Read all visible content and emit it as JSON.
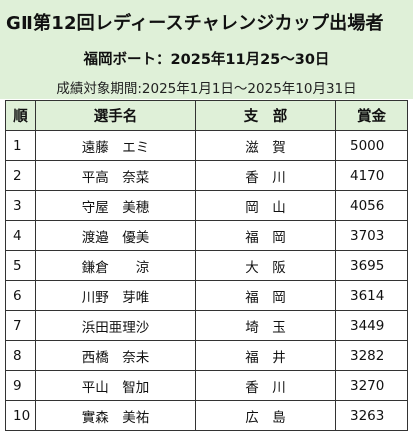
{
  "header": {
    "title": "GⅡ第12回レディースチャレンジカップ出場者",
    "subtitle": "福岡ボート：2025年11月25〜30日",
    "period": "成績対象期間:2025年1月1日〜2025年10月31日"
  },
  "table": {
    "columns": {
      "rank": "順",
      "name": "選手名",
      "branch": "支　部",
      "prize": "賞金"
    },
    "rows": [
      {
        "rank": "1",
        "name": "遠藤　エミ",
        "branch": "滋　賀",
        "prize": "5000"
      },
      {
        "rank": "2",
        "name": "平高　奈菜",
        "branch": "香　川",
        "prize": "4170"
      },
      {
        "rank": "3",
        "name": "守屋　美穂",
        "branch": "岡　山",
        "prize": "4056"
      },
      {
        "rank": "4",
        "name": "渡邉　優美",
        "branch": "福　岡",
        "prize": "3703"
      },
      {
        "rank": "5",
        "name": "鎌倉　　涼",
        "branch": "大　阪",
        "prize": "3695"
      },
      {
        "rank": "6",
        "name": "川野　芽唯",
        "branch": "福　岡",
        "prize": "3614"
      },
      {
        "rank": "7",
        "name": "浜田亜理沙",
        "branch": "埼　玉",
        "prize": "3449"
      },
      {
        "rank": "8",
        "name": "西橋　奈未",
        "branch": "福　井",
        "prize": "3282"
      },
      {
        "rank": "9",
        "name": "平山　智加",
        "branch": "香　川",
        "prize": "3270"
      },
      {
        "rank": "10",
        "name": "實森　美祐",
        "branch": "広　島",
        "prize": "3263"
      }
    ]
  }
}
